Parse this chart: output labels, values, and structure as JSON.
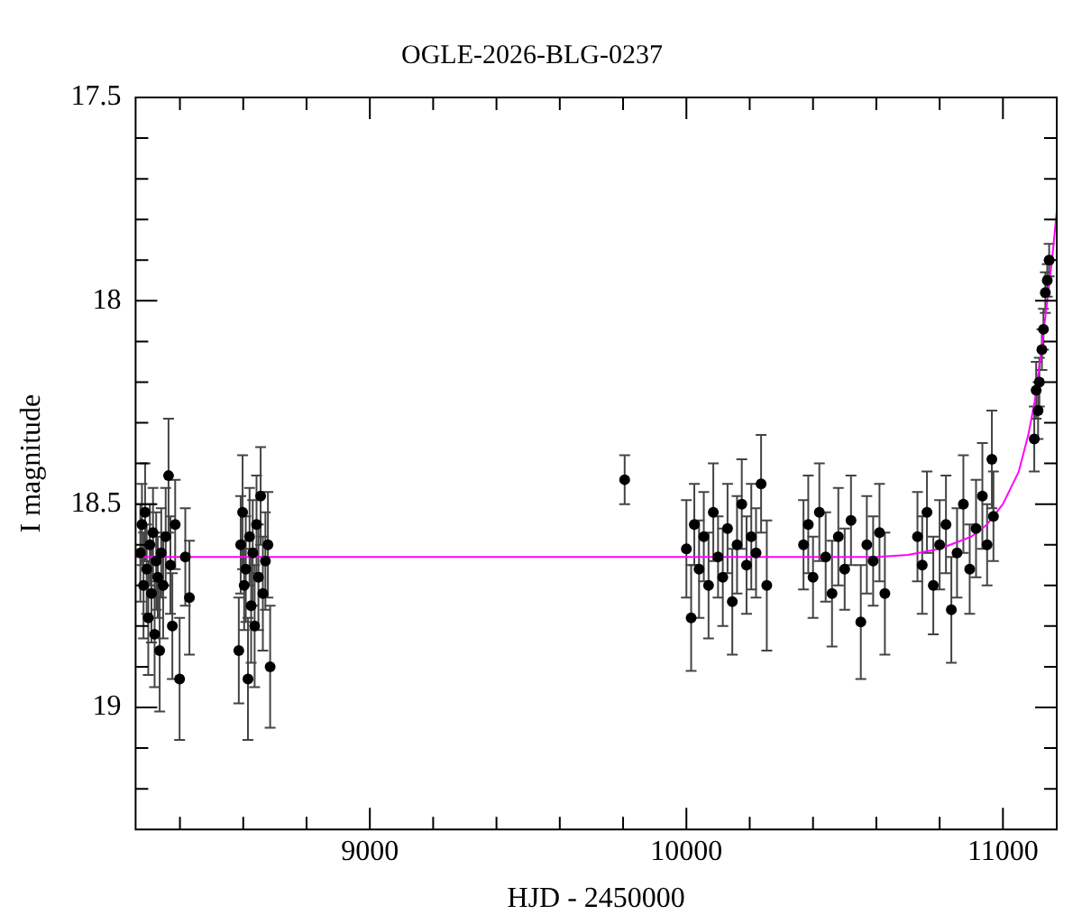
{
  "chart_data": {
    "type": "scatter",
    "title": "OGLE-2026-BLG-0237",
    "xlabel": "HJD - 2450000",
    "ylabel": "I magnitude",
    "xlim": [
      8260,
      11170
    ],
    "ylim": [
      19.3,
      17.5
    ],
    "xticks": [
      {
        "value": 8400,
        "label": null
      },
      {
        "value": 8600,
        "label": null
      },
      {
        "value": 8800,
        "label": null
      },
      9000,
      {
        "value": 9200,
        "label": null
      },
      {
        "value": 9400,
        "label": null
      },
      {
        "value": 9600,
        "label": null
      },
      {
        "value": 9800,
        "label": null
      },
      10000,
      {
        "value": 10200,
        "label": null
      },
      {
        "value": 10400,
        "label": null
      },
      {
        "value": 10600,
        "label": null
      },
      {
        "value": 10800,
        "label": null
      },
      11000
    ],
    "yticks": [
      17.5,
      {
        "value": 17.6,
        "label": null
      },
      {
        "value": 17.7,
        "label": null
      },
      {
        "value": 17.8,
        "label": null
      },
      {
        "value": 17.9,
        "label": null
      },
      18,
      {
        "value": 18.1,
        "label": null
      },
      {
        "value": 18.2,
        "label": null
      },
      {
        "value": 18.3,
        "label": null
      },
      {
        "value": 18.4,
        "label": null
      },
      18.5,
      {
        "value": 18.6,
        "label": null
      },
      {
        "value": 18.7,
        "label": null
      },
      {
        "value": 18.8,
        "label": null
      },
      {
        "value": 18.9,
        "label": null
      },
      19,
      {
        "value": 19.1,
        "label": null
      },
      {
        "value": 19.2,
        "label": null
      }
    ],
    "series": [
      {
        "color": "#000000",
        "marker": "circle",
        "x": [
          8275,
          8280,
          8285,
          8290,
          8295,
          8300,
          8305,
          8310,
          8315,
          8320,
          8325,
          8330,
          8336,
          8341,
          8347,
          8355,
          8364,
          8370,
          8376,
          8385,
          8399,
          8417,
          8430,
          8586,
          8592,
          8598,
          8603,
          8608,
          8615,
          8620,
          8625,
          8630,
          8636,
          8642,
          8648,
          8655,
          8662,
          8670,
          8678,
          8685,
          9805,
          10000,
          10015,
          10025,
          10040,
          10055,
          10070,
          10085,
          10100,
          10115,
          10130,
          10145,
          10160,
          10175,
          10190,
          10205,
          10220,
          10236,
          10254,
          10370,
          10385,
          10400,
          10420,
          10440,
          10460,
          10480,
          10500,
          10520,
          10551,
          10570,
          10590,
          10610,
          10627,
          10730,
          10745,
          10760,
          10780,
          10800,
          10820,
          10837,
          10855,
          10875,
          10895,
          10915,
          10935,
          10950,
          10965,
          10970,
          11099,
          11105,
          11111,
          11115,
          11123,
          11128,
          11134,
          11140,
          11146
        ],
        "values": [
          18.62,
          18.55,
          18.7,
          18.52,
          18.66,
          18.78,
          18.6,
          18.72,
          18.57,
          18.82,
          18.64,
          18.68,
          18.86,
          18.62,
          18.7,
          18.58,
          18.43,
          18.65,
          18.8,
          18.55,
          18.93,
          18.63,
          18.73,
          18.86,
          18.6,
          18.52,
          18.7,
          18.66,
          18.93,
          18.58,
          18.75,
          18.62,
          18.8,
          18.55,
          18.68,
          18.48,
          18.72,
          18.64,
          18.6,
          18.9,
          18.44,
          18.61,
          18.78,
          18.55,
          18.66,
          18.58,
          18.7,
          18.52,
          18.63,
          18.68,
          18.56,
          18.74,
          18.6,
          18.5,
          18.65,
          18.58,
          18.62,
          18.45,
          18.7,
          18.6,
          18.55,
          18.68,
          18.52,
          18.63,
          18.72,
          18.58,
          18.66,
          18.54,
          18.79,
          18.6,
          18.64,
          18.57,
          18.72,
          18.58,
          18.65,
          18.52,
          18.7,
          18.6,
          18.55,
          18.76,
          18.62,
          18.5,
          18.66,
          18.56,
          18.48,
          18.6,
          18.39,
          18.53,
          18.34,
          18.22,
          18.27,
          18.2,
          18.12,
          18.07,
          17.98,
          17.95,
          17.9
        ],
        "errors": [
          0.12,
          0.1,
          0.13,
          0.12,
          0.11,
          0.14,
          0.1,
          0.12,
          0.11,
          0.13,
          0.12,
          0.1,
          0.15,
          0.11,
          0.13,
          0.12,
          0.14,
          0.12,
          0.13,
          0.11,
          0.15,
          0.12,
          0.14,
          0.13,
          0.12,
          0.14,
          0.11,
          0.13,
          0.15,
          0.12,
          0.14,
          0.13,
          0.15,
          0.12,
          0.13,
          0.12,
          0.14,
          0.12,
          0.13,
          0.15,
          0.06,
          0.12,
          0.13,
          0.1,
          0.12,
          0.11,
          0.13,
          0.12,
          0.1,
          0.12,
          0.11,
          0.13,
          0.12,
          0.11,
          0.12,
          0.13,
          0.11,
          0.12,
          0.16,
          0.11,
          0.12,
          0.1,
          0.12,
          0.11,
          0.13,
          0.12,
          0.1,
          0.11,
          0.14,
          0.12,
          0.11,
          0.12,
          0.15,
          0.11,
          0.12,
          0.1,
          0.12,
          0.11,
          0.12,
          0.13,
          0.11,
          0.12,
          0.11,
          0.12,
          0.13,
          0.1,
          0.12,
          0.11,
          0.08,
          0.07,
          0.07,
          0.06,
          0.05,
          0.05,
          0.05,
          0.04,
          0.04
        ]
      },
      {
        "type": "line",
        "color": "#ff00ff",
        "marker": "none",
        "x": [
          8260,
          10600,
          10700,
          10800,
          10900,
          10950,
          11000,
          11050,
          11080,
          11100,
          11120,
          11140,
          11155,
          11170
        ],
        "values": [
          18.63,
          18.63,
          18.625,
          18.61,
          18.58,
          18.55,
          18.5,
          18.42,
          18.33,
          18.25,
          18.13,
          18.0,
          17.9,
          17.78
        ]
      }
    ]
  }
}
